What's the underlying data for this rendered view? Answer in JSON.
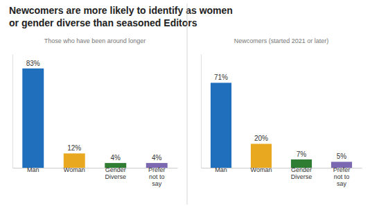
{
  "chart_data": [
    {
      "type": "bar",
      "title": "Newcomers are more likely to identify as women\nor gender diverse than seasoned Editors",
      "subtitle": "Those who have been around longer",
      "categories": [
        "Man",
        "Woman",
        "Gender\nDiverse",
        "Prefer\nnot to\nsay"
      ],
      "values": [
        83,
        12,
        4,
        4
      ],
      "value_labels": [
        "83%",
        "12%",
        "4%",
        "4%"
      ],
      "colors": [
        "#1f6fbc",
        "#e8a820",
        "#2e7d32",
        "#7b68b0"
      ],
      "ylim": [
        0,
        95
      ],
      "data_labels": true,
      "tick_labels": "x"
    },
    {
      "type": "bar",
      "subtitle": "Newcomers (started 2021 or later)",
      "categories": [
        "Man",
        "Woman",
        "Gender\nDiverse",
        "Prefer\nnot to\nsay"
      ],
      "values": [
        71,
        20,
        7,
        5
      ],
      "value_labels": [
        "71%",
        "20%",
        "7%",
        "5%"
      ],
      "colors": [
        "#1f6fbc",
        "#e8a820",
        "#2e7d32",
        "#7b68b0"
      ],
      "ylim": [
        0,
        95
      ],
      "data_labels": true,
      "tick_labels": "x"
    }
  ]
}
